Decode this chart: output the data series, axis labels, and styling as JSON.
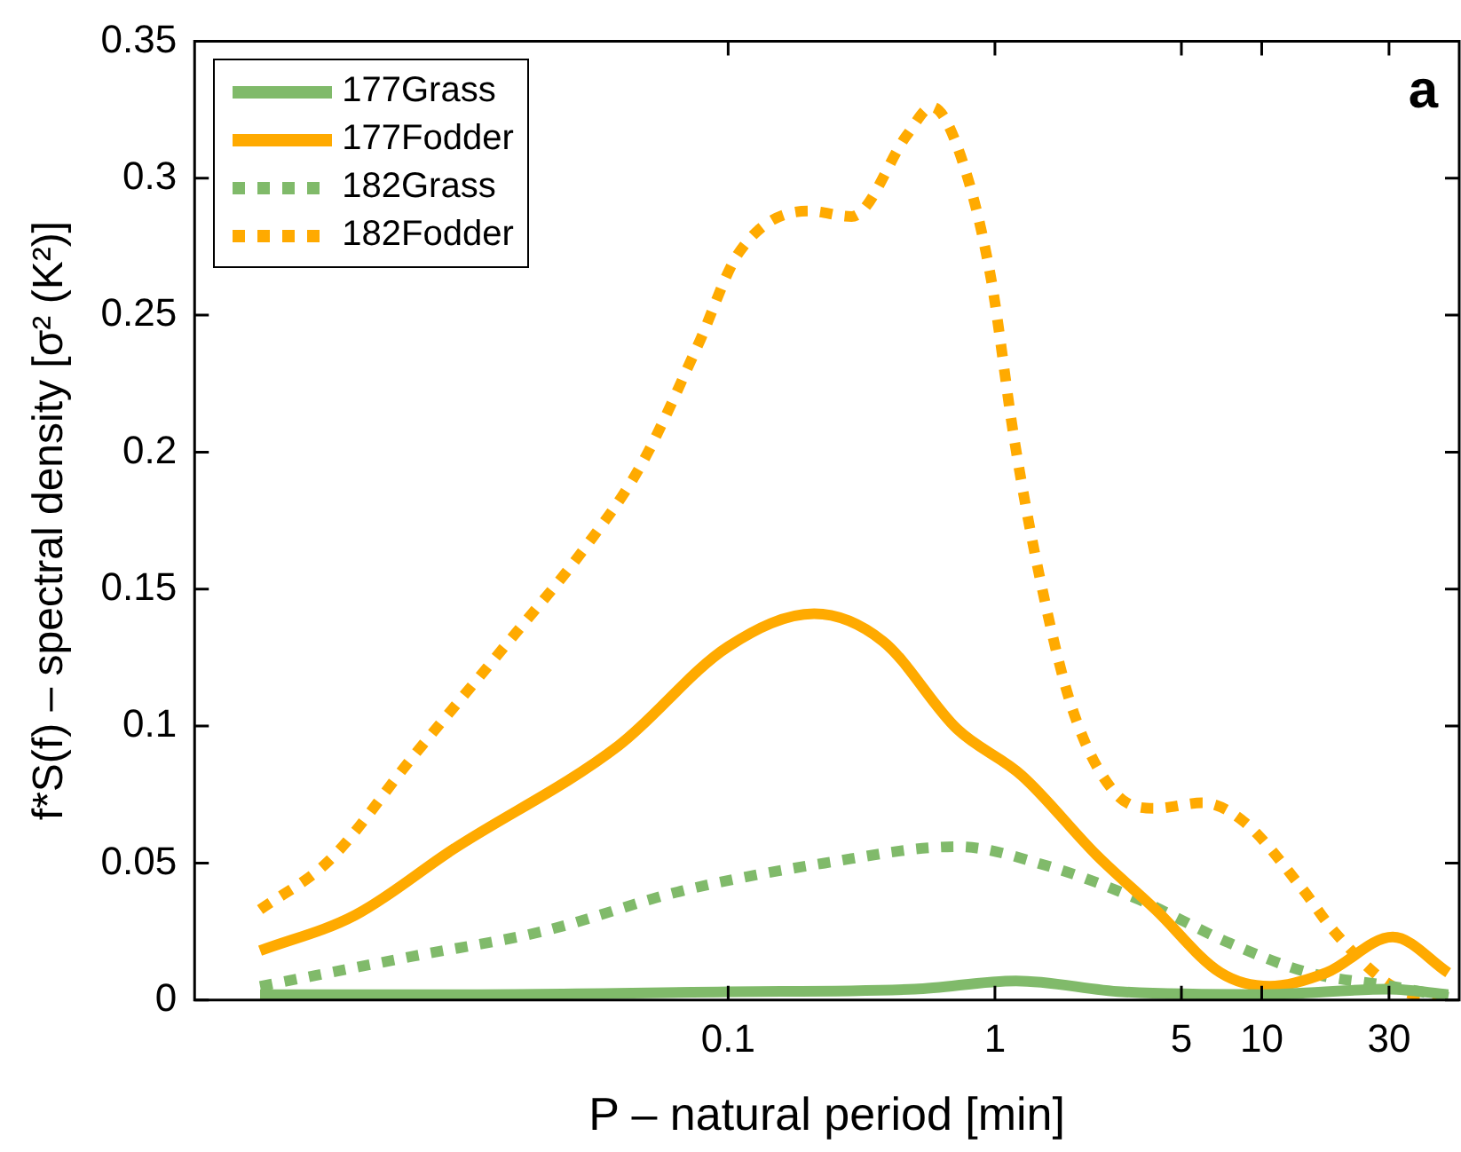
{
  "chart_data": {
    "type": "line",
    "xlabel": "P – natural period [min]",
    "ylabel": "f*S(f) – spectral density [σ² (K²)]",
    "log": "x",
    "xlim": [
      0.001,
      55
    ],
    "xticks": [
      0.1,
      1,
      5,
      10,
      30
    ],
    "ylim": [
      0,
      0.35
    ],
    "yticks": [
      0,
      0.05,
      0.1,
      0.15,
      0.2,
      0.25,
      0.3,
      0.35
    ],
    "grid": false,
    "legend": "top left",
    "marker": "none",
    "annotations": [
      "a"
    ],
    "series": [
      {
        "name": "177Grass",
        "color": "#80ba6a",
        "line_style": "solid",
        "x": [
          0.00176,
          0.01,
          0.1,
          0.5,
          1.2,
          3,
          10,
          30,
          50
        ],
        "values": [
          0.002,
          0.002,
          0.003,
          0.004,
          0.007,
          0.003,
          0.002,
          0.004,
          0.002
        ]
      },
      {
        "name": "177Fodder",
        "color": "#ffaa00",
        "line_style": "solid",
        "x": [
          0.00176,
          0.004,
          0.0093,
          0.039,
          0.1,
          0.21,
          0.38,
          0.72,
          1.26,
          2.4,
          4,
          7,
          10.7,
          17.5,
          31,
          50
        ],
        "values": [
          0.018,
          0.031,
          0.055,
          0.093,
          0.129,
          0.141,
          0.131,
          0.099,
          0.082,
          0.053,
          0.033,
          0.01,
          0.005,
          0.01,
          0.023,
          0.01
        ]
      },
      {
        "name": "182Grass",
        "color": "#80ba6a",
        "line_style": "dotted",
        "x": [
          0.00176,
          0.0066,
          0.02,
          0.068,
          0.23,
          0.72,
          1.57,
          3.4,
          7.5,
          15,
          31,
          50
        ],
        "values": [
          0.005,
          0.016,
          0.025,
          0.04,
          0.05,
          0.056,
          0.049,
          0.037,
          0.021,
          0.01,
          0.005,
          0.001
        ]
      },
      {
        "name": "182Fodder",
        "color": "#ffaa00",
        "line_style": "dotted",
        "x": [
          0.00176,
          0.0032,
          0.0066,
          0.0145,
          0.029,
          0.047,
          0.077,
          0.11,
          0.2,
          0.29,
          0.47,
          0.58,
          0.72,
          0.96,
          1.18,
          1.46,
          1.94,
          2.8,
          4,
          6,
          8.6,
          14.1,
          18.7,
          31,
          50
        ],
        "values": [
          0.033,
          0.051,
          0.089,
          0.129,
          0.165,
          0.195,
          0.239,
          0.273,
          0.288,
          0.286,
          0.316,
          0.326,
          0.312,
          0.265,
          0.205,
          0.156,
          0.107,
          0.076,
          0.07,
          0.072,
          0.065,
          0.041,
          0.025,
          0.005,
          0
        ]
      }
    ]
  }
}
